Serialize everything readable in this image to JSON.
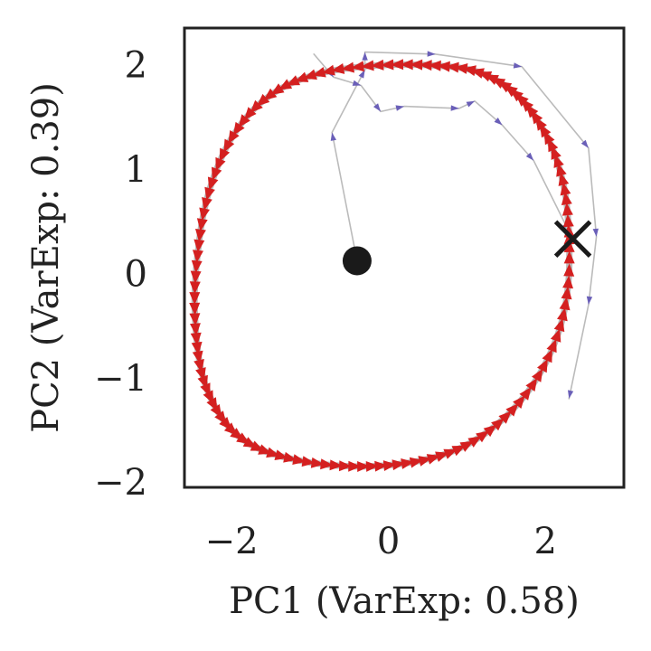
{
  "chart_data": {
    "type": "line",
    "title": "",
    "xlabel": "PC1 (VarExp: 0.58)",
    "ylabel": "PC2 (VarExp: 0.39)",
    "xlim": [
      -2.6,
      3.0
    ],
    "ylim": [
      -2.05,
      2.35
    ],
    "xticks": [
      -2,
      0,
      2
    ],
    "xtick_labels": [
      "−2",
      "0",
      "2"
    ],
    "yticks": [
      -2,
      -1,
      0,
      1,
      2
    ],
    "ytick_labels": [
      "−2",
      "−1",
      "0",
      "1",
      "2"
    ],
    "grid": false,
    "legend": "none",
    "start_marker": {
      "x": -0.4,
      "y": 0.12,
      "shape": "circle"
    },
    "end_marker": {
      "x": 2.35,
      "y": 0.33,
      "shape": "x"
    },
    "series": [
      {
        "role": "transient",
        "color": "#6a5fb8",
        "points": [
          [
            -0.4,
            0.12
          ],
          [
            -0.72,
            1.35
          ],
          [
            -0.3,
            1.95
          ],
          [
            -0.3,
            2.12
          ],
          [
            0.6,
            2.1
          ],
          [
            1.7,
            1.98
          ],
          [
            2.55,
            1.2
          ],
          [
            2.65,
            0.35
          ],
          [
            2.55,
            -0.3
          ],
          [
            2.3,
            -1.2
          ]
        ]
      },
      {
        "role": "transient",
        "color": "#6a5fb8",
        "points": [
          [
            -0.95,
            2.1
          ],
          [
            -0.7,
            1.88
          ],
          [
            -0.35,
            1.8
          ],
          [
            -0.1,
            1.55
          ],
          [
            0.2,
            1.6
          ],
          [
            0.9,
            1.58
          ],
          [
            1.1,
            1.65
          ],
          [
            1.45,
            1.42
          ],
          [
            1.85,
            1.08
          ],
          [
            2.3,
            0.4
          ]
        ]
      },
      {
        "role": "limit-cycle",
        "color": "#d42020",
        "points": [
          [
            2.3,
            0.4
          ],
          [
            2.25,
            0.78
          ],
          [
            2.12,
            1.14
          ],
          [
            1.93,
            1.43
          ],
          [
            1.69,
            1.67
          ],
          [
            1.4,
            1.84
          ],
          [
            1.05,
            1.95
          ],
          [
            0.62,
            1.99
          ],
          [
            0.15,
            2.0
          ],
          [
            -0.35,
            1.98
          ],
          [
            -0.85,
            1.92
          ],
          [
            -1.3,
            1.8
          ],
          [
            -1.68,
            1.6
          ],
          [
            -1.98,
            1.32
          ],
          [
            -2.2,
            0.98
          ],
          [
            -2.35,
            0.6
          ],
          [
            -2.43,
            0.2
          ],
          [
            -2.47,
            -0.2
          ],
          [
            -2.45,
            -0.6
          ],
          [
            -2.38,
            -0.95
          ],
          [
            -2.23,
            -1.25
          ],
          [
            -2.0,
            -1.5
          ],
          [
            -1.68,
            -1.67
          ],
          [
            -1.28,
            -1.77
          ],
          [
            -0.82,
            -1.83
          ],
          [
            -0.35,
            -1.85
          ],
          [
            0.1,
            -1.83
          ],
          [
            0.55,
            -1.77
          ],
          [
            0.98,
            -1.65
          ],
          [
            1.38,
            -1.45
          ],
          [
            1.74,
            -1.17
          ],
          [
            2.03,
            -0.82
          ],
          [
            2.22,
            -0.43
          ],
          [
            2.3,
            -0.02
          ],
          [
            2.3,
            0.4
          ]
        ]
      }
    ]
  }
}
